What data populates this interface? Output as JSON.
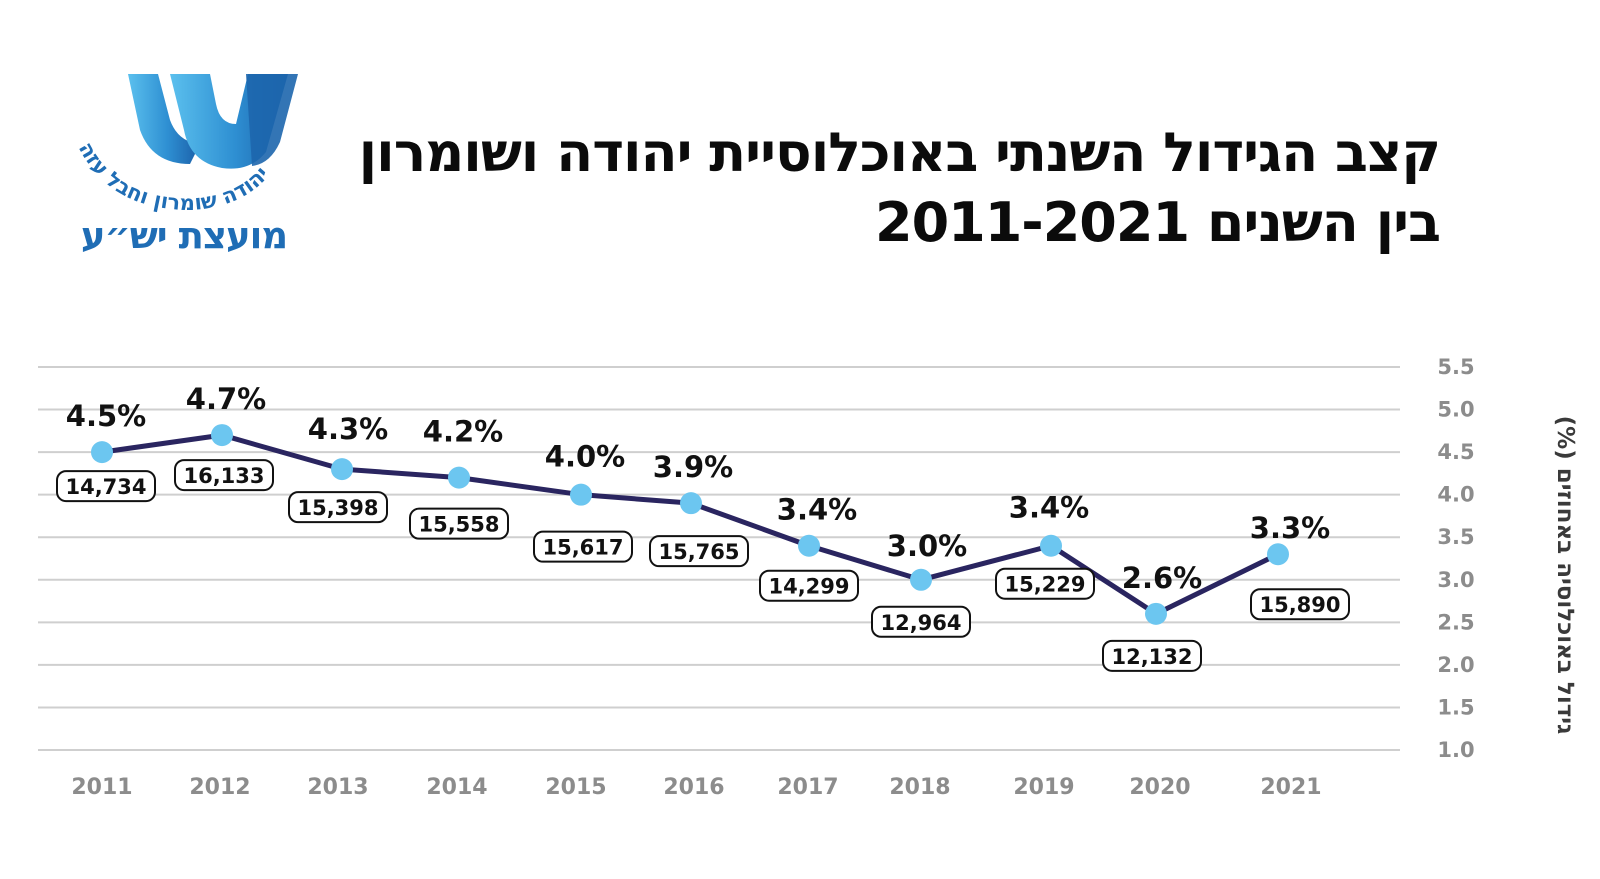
{
  "brand": {
    "name": "מועצת יש״ע",
    "tagline": "יהודה שומרון וחבל עזה",
    "colors": {
      "primary": "#1f6db5",
      "light": "#5bb7e8"
    }
  },
  "title": {
    "line1": "קצב הגידול השנתי באוכלוסיית יהודה ושומרון",
    "line2": "בין השנים 2011-2021"
  },
  "chart_data": {
    "type": "line",
    "title": "קצב הגידול השנתי באוכלוסיית יהודה ושומרון בין השנים 2011-2021",
    "xlabel": "",
    "ylabel": "גידול באוכלוסיה באחוזים (%)",
    "ylim": [
      1.0,
      5.5
    ],
    "yticks": [
      "1.0",
      "1.5",
      "2.0",
      "2.5",
      "3.0",
      "3.5",
      "4.0",
      "4.5",
      "5.0",
      "5.5"
    ],
    "grid": true,
    "categories": [
      "2011",
      "2012",
      "2013",
      "2014",
      "2015",
      "2016",
      "2017",
      "2018",
      "2019",
      "2020",
      "2021"
    ],
    "series": [
      {
        "name": "גידול באוכלוסיה (%)",
        "values": [
          4.5,
          4.7,
          4.3,
          4.2,
          4.0,
          3.9,
          3.4,
          3.0,
          3.4,
          2.6,
          3.3
        ],
        "percent_labels": [
          "4.5%",
          "4.7%",
          "4.3%",
          "4.2%",
          "4.0%",
          "3.9%",
          "3.4%",
          "3.0%",
          "3.4%",
          "2.6%",
          "3.3%"
        ],
        "count_labels": [
          "14,734",
          "16,133",
          "15,398",
          "15,558",
          "15,617",
          "15,765",
          "14,299",
          "12,964",
          "15,229",
          "12,132",
          "15,890"
        ]
      }
    ],
    "colors": {
      "line": "#2a2560",
      "marker": "#6cc6f0",
      "grid": "#cfcfcf",
      "axis_text": "#8c8c8c"
    }
  }
}
